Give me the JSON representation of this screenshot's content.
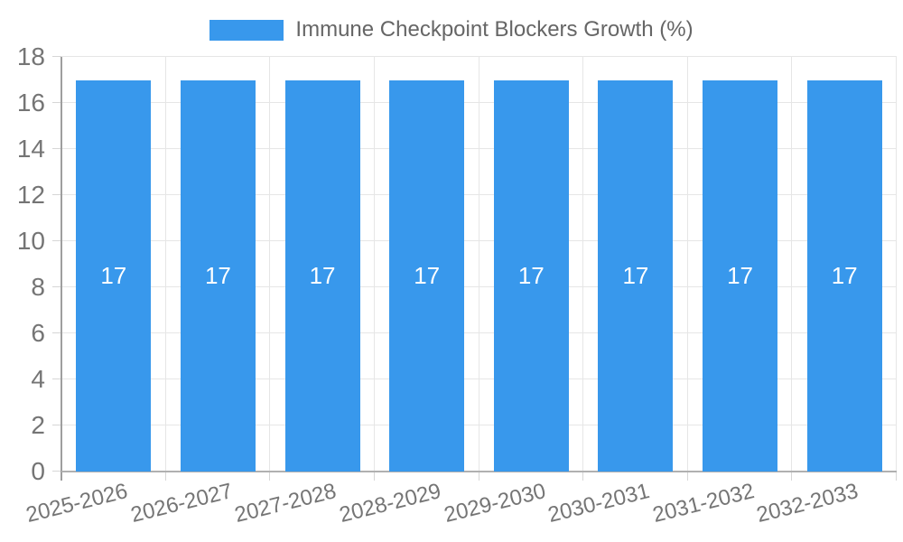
{
  "chart_data": {
    "type": "bar",
    "title": "Immune Checkpoint Blockers Growth (%)",
    "categories": [
      "2025-2026",
      "2026-2027",
      "2027-2028",
      "2028-2029",
      "2029-2030",
      "2030-2031",
      "2031-2032",
      "2032-2033"
    ],
    "series": [
      {
        "name": "Immune Checkpoint Blockers Growth (%)",
        "values": [
          17,
          17,
          17,
          17,
          17,
          17,
          17,
          17
        ]
      }
    ],
    "xlabel": "",
    "ylabel": "",
    "ylim": [
      0,
      18
    ],
    "yticks": [
      0,
      2,
      4,
      6,
      8,
      10,
      12,
      14,
      16,
      18
    ],
    "grid": true,
    "legend_position": "top-center",
    "value_labels_shown": true,
    "colors": {
      "bar": "#3898EC",
      "value_label": "#FFFFFF",
      "axis_line": "#9E9E9E",
      "baseline": "#B0B0B0",
      "gridline": "#E6E6E6",
      "tick": "#D6D6D6",
      "tick_label": "#757575",
      "legend_text": "#666666",
      "background": "#FFFFFF"
    }
  }
}
